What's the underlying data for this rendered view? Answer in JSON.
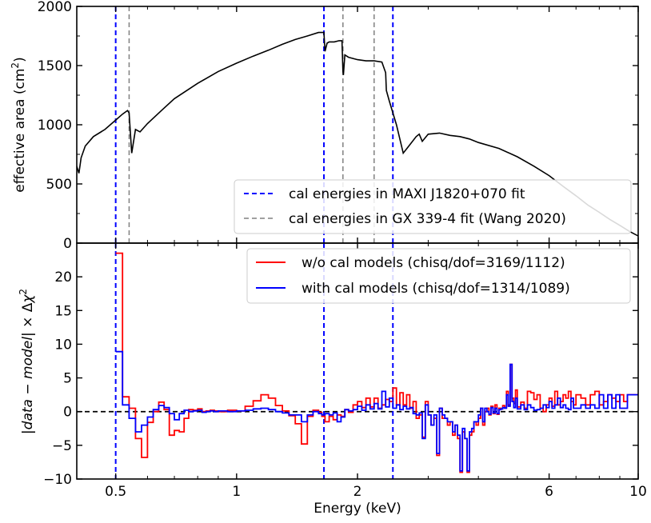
{
  "chart_data": [
    {
      "type": "line",
      "ylabel_main": "effective area (cm",
      "ylabel_sup": "2",
      "ylabel_end": ")",
      "xscale": "log",
      "xlim": [
        0.4,
        10
      ],
      "ylim": [
        0,
        2000
      ],
      "yticks": [
        0,
        500,
        1000,
        1500,
        2000
      ],
      "yticklabels": [
        "0",
        "500",
        "1000",
        "1500",
        "2000"
      ],
      "legend_position": "lower-right",
      "series": [
        {
          "name": "effective area",
          "color": "#000000",
          "x": [
            0.4,
            0.405,
            0.41,
            0.42,
            0.44,
            0.47,
            0.5,
            0.52,
            0.535,
            0.54,
            0.548,
            0.56,
            0.575,
            0.6,
            0.65,
            0.7,
            0.8,
            0.9,
            1.0,
            1.1,
            1.2,
            1.3,
            1.4,
            1.5,
            1.6,
            1.65,
            1.66,
            1.68,
            1.7,
            1.75,
            1.8,
            1.83,
            1.84,
            1.845,
            1.86,
            1.9,
            2.0,
            2.1,
            2.2,
            2.3,
            2.35,
            2.36,
            2.4,
            2.5,
            2.6,
            2.8,
            2.85,
            2.9,
            3.0,
            3.2,
            3.4,
            3.6,
            3.8,
            4.0,
            4.5,
            5.0,
            5.5,
            6.0,
            6.5,
            7.0,
            7.5,
            8.0,
            8.5,
            9.0,
            9.5,
            10.0
          ],
          "y": [
            650,
            590,
            720,
            820,
            900,
            960,
            1040,
            1090,
            1120,
            1100,
            760,
            960,
            940,
            1010,
            1120,
            1220,
            1350,
            1450,
            1520,
            1580,
            1630,
            1680,
            1720,
            1750,
            1780,
            1780,
            1620,
            1690,
            1700,
            1700,
            1710,
            1710,
            1450,
            1420,
            1590,
            1570,
            1550,
            1540,
            1540,
            1530,
            1440,
            1290,
            1200,
            1000,
            760,
            900,
            920,
            860,
            920,
            930,
            910,
            900,
            880,
            850,
            800,
            730,
            650,
            570,
            480,
            400,
            320,
            260,
            200,
            150,
            100,
            60
          ]
        }
      ],
      "vlines": [
        {
          "name": "cal energies in MAXI J1820+070 fit",
          "x": [
            0.5,
            1.65,
            2.45
          ],
          "color": "#0000ff",
          "style": "dashed"
        },
        {
          "name": "cal energies in GX 339-4 fit (Wang 2020)",
          "x": [
            0.54,
            1.84,
            2.2
          ],
          "color": "#808080",
          "style": "dashed"
        }
      ]
    },
    {
      "type": "line",
      "xlabel": "Energy (keV)",
      "ylabel_parts": [
        "|",
        "data",
        " − ",
        "model",
        "| × Δ",
        "χ",
        "2"
      ],
      "xscale": "log",
      "xlim": [
        0.4,
        10
      ],
      "ylim": [
        -10,
        25
      ],
      "xticks": [
        0.5,
        1,
        2,
        6,
        10
      ],
      "xticklabels": [
        "0.5",
        "1",
        "2",
        "6",
        "10"
      ],
      "yticks": [
        -10,
        -5,
        0,
        5,
        10,
        15,
        20
      ],
      "yticklabels": [
        "−10",
        "−5",
        "0",
        "5",
        "10",
        "15",
        "20"
      ],
      "hline": {
        "y": 0,
        "color": "#000000",
        "style": "dashed"
      },
      "legend_position": "upper-right",
      "series": [
        {
          "name": "w/o cal models (chisq/dof=3169/1112)",
          "color": "#ff0000",
          "x": [
            0.5,
            0.52,
            0.54,
            0.56,
            0.58,
            0.6,
            0.62,
            0.64,
            0.66,
            0.68,
            0.7,
            0.72,
            0.74,
            0.76,
            0.78,
            0.8,
            0.82,
            0.84,
            0.86,
            0.88,
            0.9,
            0.95,
            1.0,
            1.05,
            1.1,
            1.15,
            1.2,
            1.25,
            1.3,
            1.35,
            1.4,
            1.45,
            1.5,
            1.55,
            1.6,
            1.63,
            1.66,
            1.7,
            1.74,
            1.78,
            1.82,
            1.86,
            1.9,
            1.95,
            2.0,
            2.05,
            2.1,
            2.15,
            2.2,
            2.25,
            2.3,
            2.35,
            2.4,
            2.45,
            2.5,
            2.55,
            2.6,
            2.65,
            2.7,
            2.75,
            2.8,
            2.85,
            2.9,
            2.95,
            3.0,
            3.05,
            3.1,
            3.15,
            3.2,
            3.25,
            3.3,
            3.35,
            3.4,
            3.45,
            3.5,
            3.55,
            3.6,
            3.65,
            3.7,
            3.75,
            3.8,
            3.85,
            3.9,
            3.95,
            4.0,
            4.05,
            4.1,
            4.15,
            4.2,
            4.25,
            4.3,
            4.35,
            4.4,
            4.45,
            4.5,
            4.55,
            4.6,
            4.65,
            4.7,
            4.75,
            4.8,
            4.85,
            4.9,
            4.95,
            5.0,
            5.1,
            5.2,
            5.3,
            5.4,
            5.5,
            5.6,
            5.7,
            5.8,
            5.9,
            6.0,
            6.1,
            6.2,
            6.3,
            6.4,
            6.5,
            6.6,
            6.7,
            6.8,
            6.9,
            7.0,
            7.2,
            7.4,
            7.6,
            7.8,
            8.0,
            8.2,
            8.4,
            8.6,
            8.8,
            9.0,
            9.2,
            9.4,
            9.6,
            9.8,
            10.0
          ],
          "y": [
            23.5,
            2.2,
            0.5,
            -4,
            -6.8,
            -1.6,
            0,
            1.4,
            0.3,
            -3.5,
            -2.8,
            -3,
            -1,
            0.3,
            0.2,
            0.4,
            0,
            0.1,
            0.2,
            0.1,
            0,
            0.2,
            0.1,
            0.8,
            1.6,
            2.5,
            2.0,
            0.9,
            0.1,
            -0.6,
            -1.8,
            -4.8,
            -0.7,
            0.2,
            -0.1,
            -0.7,
            -1.5,
            -0.7,
            -1.2,
            -0.5,
            -0.7,
            0.3,
            -0.1,
            1.0,
            1.5,
            0.6,
            2.0,
            0.7,
            2.0,
            0.5,
            1.0,
            1.8,
            1.5,
            3.5,
            1.0,
            2.8,
            1.0,
            2.5,
            0.5,
            1.5,
            -1.0,
            -0.5,
            -3.8,
            1.5,
            -0.5,
            -2.0,
            -1.0,
            -6.5,
            0.5,
            -1.0,
            -1.0,
            -2.0,
            -1.5,
            -3.5,
            -2.0,
            -4.0,
            -9.0,
            -3.0,
            -4.0,
            -9.0,
            -3.5,
            -3.0,
            -1.5,
            -2.0,
            -1.0,
            0.5,
            -2.0,
            0.0,
            0.5,
            -0.5,
            0.8,
            -0.3,
            1.0,
            -0.4,
            0.5,
            0.4,
            0.9,
            0.6,
            3.0,
            1.0,
            7.0,
            2.0,
            1.2,
            3.2,
            0.7,
            1.4,
            0.5,
            3.0,
            2.8,
            1.8,
            2.5,
            0.5,
            0.0,
            1.0,
            2.0,
            0.8,
            3.0,
            1.0,
            1.5,
            2.5,
            2.0,
            3.0,
            1.5,
            1.0,
            2.5,
            2.0,
            1.0,
            2.5,
            3.0,
            1.0,
            1.5,
            2.5,
            2.0,
            1.5,
            2.5,
            1.5,
            2.5,
            2.5,
            2.5,
            2.5
          ],
          "ylim": [
            -10,
            25
          ]
        },
        {
          "name": "with cal models (chisq/dof=1314/1089)",
          "color": "#0000ff",
          "x": [
            0.5,
            0.52,
            0.54,
            0.56,
            0.58,
            0.6,
            0.62,
            0.64,
            0.66,
            0.68,
            0.7,
            0.72,
            0.74,
            0.76,
            0.78,
            0.8,
            0.82,
            0.84,
            0.86,
            0.88,
            0.9,
            0.95,
            1.0,
            1.05,
            1.1,
            1.15,
            1.2,
            1.25,
            1.3,
            1.35,
            1.4,
            1.45,
            1.5,
            1.55,
            1.6,
            1.63,
            1.66,
            1.7,
            1.74,
            1.78,
            1.82,
            1.86,
            1.9,
            1.95,
            2.0,
            2.05,
            2.1,
            2.15,
            2.2,
            2.25,
            2.3,
            2.35,
            2.4,
            2.45,
            2.5,
            2.55,
            2.6,
            2.65,
            2.7,
            2.75,
            2.8,
            2.85,
            2.9,
            2.95,
            3.0,
            3.05,
            3.1,
            3.15,
            3.2,
            3.25,
            3.3,
            3.35,
            3.4,
            3.45,
            3.5,
            3.55,
            3.6,
            3.65,
            3.7,
            3.75,
            3.8,
            3.85,
            3.9,
            3.95,
            4.0,
            4.05,
            4.1,
            4.15,
            4.2,
            4.25,
            4.3,
            4.35,
            4.4,
            4.45,
            4.5,
            4.55,
            4.6,
            4.65,
            4.7,
            4.75,
            4.8,
            4.85,
            4.9,
            4.95,
            5.0,
            5.1,
            5.2,
            5.3,
            5.4,
            5.5,
            5.6,
            5.7,
            5.8,
            5.9,
            6.0,
            6.1,
            6.2,
            6.3,
            6.4,
            6.5,
            6.6,
            6.7,
            6.8,
            6.9,
            7.0,
            7.2,
            7.4,
            7.6,
            7.8,
            8.0,
            8.2,
            8.4,
            8.6,
            8.8,
            9.0,
            9.2,
            9.4,
            9.6,
            9.8,
            10.0
          ],
          "y": [
            8.9,
            1.0,
            -1.0,
            -3.0,
            -2.0,
            -0.8,
            0.3,
            0.9,
            0.6,
            -0.3,
            -1.2,
            -0.3,
            0.2,
            0.0,
            0.1,
            0.2,
            -0.1,
            0.0,
            0.1,
            0.0,
            0.1,
            0.0,
            0.1,
            0.2,
            0.4,
            0.5,
            0.3,
            0.0,
            -0.2,
            -0.5,
            -0.5,
            -1.5,
            -0.5,
            0.0,
            -0.3,
            -0.5,
            -0.3,
            -0.5,
            -0.2,
            -1.5,
            -0.8,
            0.3,
            0.1,
            0.3,
            0.8,
            0.2,
            1.0,
            0.4,
            1.2,
            0.4,
            3.0,
            0.7,
            2.0,
            0.5,
            1.0,
            0.3,
            0.8,
            0.4,
            0.6,
            -0.3,
            -0.5,
            -0.2,
            -4.0,
            1.0,
            -0.5,
            -2.0,
            -0.5,
            -6.2,
            0.5,
            -0.5,
            -1.0,
            -1.5,
            -1.5,
            -3.0,
            -2.0,
            -3.5,
            -8.8,
            -2.5,
            -4.0,
            -8.8,
            -3.0,
            -2.5,
            -1.5,
            -1.5,
            -0.5,
            0.5,
            -1.5,
            0.5,
            0.0,
            -0.4,
            0.6,
            -0.2,
            0.5,
            -0.3,
            0.3,
            0.4,
            0.6,
            0.5,
            2.5,
            0.8,
            7.0,
            1.5,
            0.6,
            2.0,
            0.4,
            1.0,
            0.3,
            1.0,
            0.6,
            0.2,
            0.3,
            0.5,
            1.0,
            0.6,
            1.5,
            0.5,
            1.0,
            2.0,
            0.6,
            1.0,
            0.5,
            0.3,
            2.0,
            0.5,
            0.5,
            1.0,
            0.5,
            1.0,
            0.5,
            2.5,
            0.5,
            2.5,
            0.5,
            2.5,
            0.5,
            0.5,
            2.5,
            2.5,
            2.5,
            2.5
          ]
        }
      ],
      "vlines": [
        {
          "x": [
            0.5,
            1.65,
            2.45
          ],
          "color": "#0000ff",
          "style": "dashed"
        }
      ]
    }
  ]
}
